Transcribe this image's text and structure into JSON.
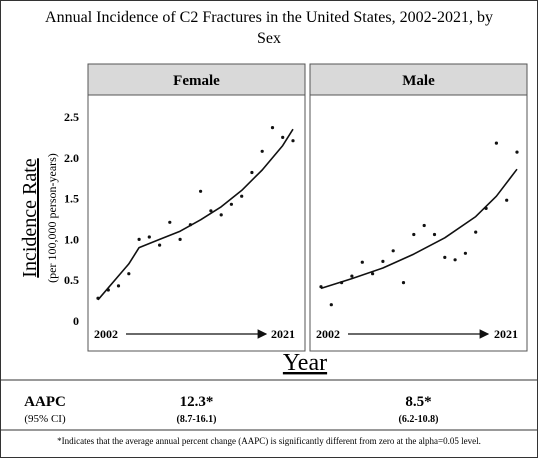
{
  "title_line1": "Annual Incidence of C2 Fractures in the United States, 2002-2021, by",
  "title_line2": "Sex",
  "ylabel_main": "Incidence Rate",
  "ylabel_sub": "(per 100,000 person-years)",
  "xlabel": "Year",
  "yticks": [
    "0",
    "0.5",
    "1.0",
    "1.5",
    "2.0",
    "2.5"
  ],
  "aapc_label": "AAPC",
  "ci_label": "(95% CI)",
  "footnote": "*Indicates that the average annual percent change (AAPC) is significantly different from zero at the alpha=0.05 level.",
  "chart_data": [
    {
      "type": "scatter",
      "panel": "Female",
      "x_start_label": "2002",
      "x_end_label": "2021",
      "ylim": [
        0,
        2.5
      ],
      "x": [
        2002,
        2003,
        2004,
        2005,
        2006,
        2007,
        2008,
        2009,
        2010,
        2011,
        2012,
        2013,
        2014,
        2015,
        2016,
        2017,
        2018,
        2019,
        2020,
        2021
      ],
      "values": [
        0.28,
        0.38,
        0.43,
        0.58,
        1.0,
        1.03,
        0.93,
        1.21,
        1.0,
        1.18,
        1.59,
        1.35,
        1.3,
        1.43,
        1.53,
        1.82,
        2.08,
        2.37,
        2.25,
        2.21
      ],
      "fit_line": {
        "x": [
          2002,
          2005,
          2006,
          2008,
          2010,
          2012,
          2014,
          2016,
          2018,
          2020,
          2021
        ],
        "values": [
          0.26,
          0.7,
          0.9,
          1.0,
          1.1,
          1.24,
          1.4,
          1.6,
          1.85,
          2.15,
          2.35
        ]
      },
      "aapc": "12.3*",
      "ci": "(8.7-16.1)"
    },
    {
      "type": "scatter",
      "panel": "Male",
      "x_start_label": "2002",
      "x_end_label": "2021",
      "ylim": [
        0,
        2.5
      ],
      "x": [
        2002,
        2003,
        2004,
        2005,
        2006,
        2007,
        2008,
        2009,
        2010,
        2011,
        2012,
        2013,
        2014,
        2015,
        2016,
        2017,
        2018,
        2019,
        2020,
        2021
      ],
      "values": [
        0.42,
        0.2,
        0.47,
        0.55,
        0.72,
        0.58,
        0.73,
        0.86,
        0.47,
        1.06,
        1.17,
        1.06,
        0.78,
        0.75,
        0.83,
        1.09,
        1.38,
        2.18,
        1.48,
        2.07
      ],
      "fit_line": {
        "x": [
          2002,
          2005,
          2008,
          2011,
          2014,
          2017,
          2019,
          2021
        ],
        "values": [
          0.4,
          0.52,
          0.65,
          0.82,
          1.02,
          1.28,
          1.53,
          1.86
        ]
      },
      "aapc": "8.5*",
      "ci": "(6.2-10.8)"
    }
  ]
}
